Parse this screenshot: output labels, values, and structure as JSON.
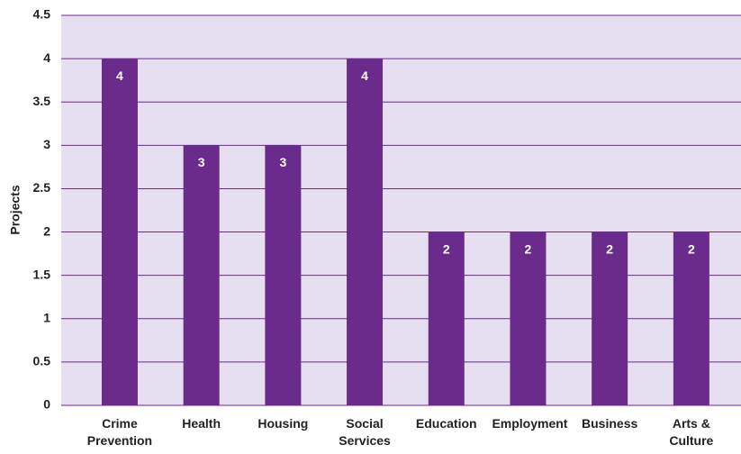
{
  "chart_data": {
    "type": "bar",
    "y_label": "Projects",
    "categories": [
      "Crime Prevention",
      "Health",
      "Housing",
      "Social Services",
      "Education",
      "Employment",
      "Business",
      "Arts & Culture"
    ],
    "values": [
      4,
      3,
      3,
      4,
      2,
      2,
      2,
      2
    ],
    "color": "#6a2b8c",
    "ylim": [
      0,
      4.5
    ],
    "yticks": [
      0,
      0.5,
      1,
      1.5,
      2,
      2.5,
      3,
      3.5,
      4,
      4.5
    ],
    "grid": true
  }
}
